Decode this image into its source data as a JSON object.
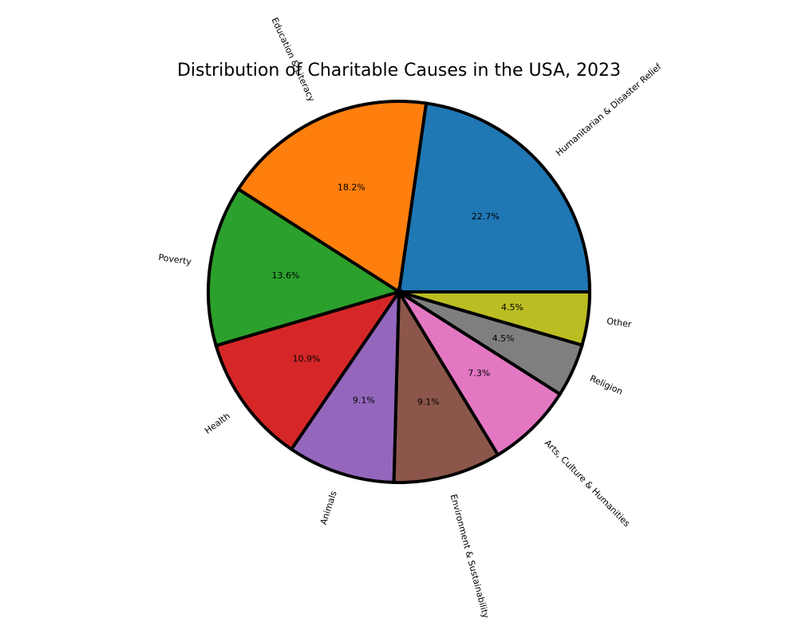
{
  "chart_data": {
    "type": "pie",
    "title": "Distribution of Charitable Causes in the USA, 2023",
    "start_angle_deg": 0,
    "direction": "counterclockwise",
    "edge_color": "#000000",
    "slices": [
      {
        "label": "Humanitarian & Disaster Relief",
        "value": 22.7,
        "pct_text": "22.7%",
        "color": "#1f77b4"
      },
      {
        "label": "Education & Literacy",
        "value": 18.2,
        "pct_text": "18.2%",
        "color": "#ff7f0e"
      },
      {
        "label": "Poverty",
        "value": 13.6,
        "pct_text": "13.6%",
        "color": "#2ca02c"
      },
      {
        "label": "Health",
        "value": 10.9,
        "pct_text": "10.9%",
        "color": "#d62728"
      },
      {
        "label": "Animals",
        "value": 9.1,
        "pct_text": "9.1%",
        "color": "#9467bd"
      },
      {
        "label": "Environment & Sustainability",
        "value": 9.1,
        "pct_text": "9.1%",
        "color": "#8c564b"
      },
      {
        "label": "Arts, Culture & Humanities",
        "value": 7.3,
        "pct_text": "7.3%",
        "color": "#e377c2"
      },
      {
        "label": "Religion",
        "value": 4.5,
        "pct_text": "4.5%",
        "color": "#7f7f7f"
      },
      {
        "label": "Other",
        "value": 4.5,
        "pct_text": "4.5%",
        "color": "#bcbd22"
      }
    ]
  }
}
